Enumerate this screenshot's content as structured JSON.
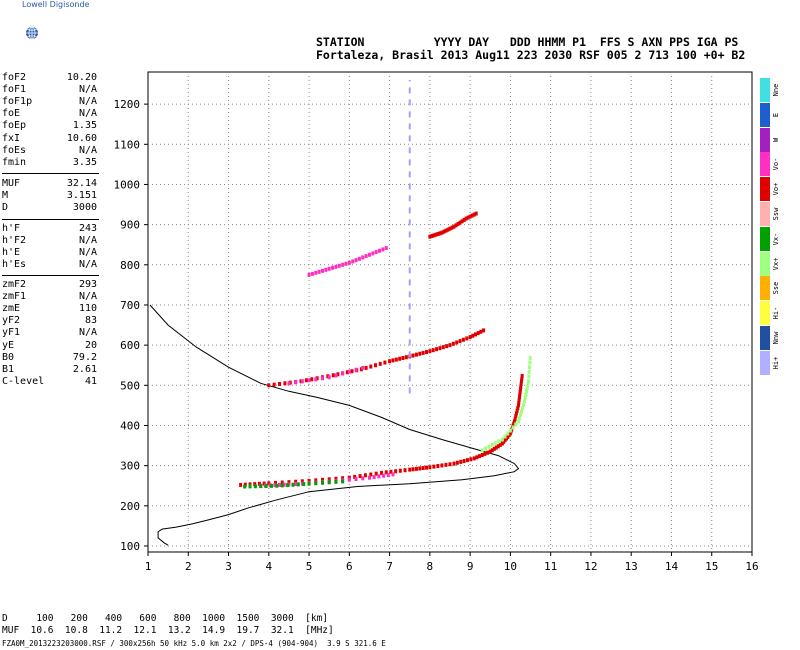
{
  "logo": {
    "text": "Lowell Digisonde",
    "icon": "globe-icon"
  },
  "header": {
    "line1": "STATION          YYYY DAY   DDD HHMM P1  FFS S AXN PPS IGA PS",
    "line2": "Fortaleza, Brasil 2013 Aug11 223 2030 RSF 005 2 713 100 +0+ B2"
  },
  "params": {
    "group1": [
      {
        "label": "foF2",
        "value": "10.20"
      },
      {
        "label": "foF1",
        "value": "N/A"
      },
      {
        "label": "foF1p",
        "value": "N/A"
      },
      {
        "label": "foE",
        "value": "N/A"
      },
      {
        "label": "foEp",
        "value": "1.35"
      },
      {
        "label": "fxI",
        "value": "10.60"
      },
      {
        "label": "foEs",
        "value": "N/A"
      },
      {
        "label": "fmin",
        "value": "3.35"
      }
    ],
    "group2": [
      {
        "label": "MUF",
        "value": "32.14"
      },
      {
        "label": "M",
        "value": "3.151"
      },
      {
        "label": "D",
        "value": "3000"
      }
    ],
    "group3": [
      {
        "label": "h'F",
        "value": "243"
      },
      {
        "label": "h'F2",
        "value": "N/A"
      },
      {
        "label": "h'E",
        "value": "N/A"
      },
      {
        "label": "h'Es",
        "value": "N/A"
      }
    ],
    "group4": [
      {
        "label": "zmF2",
        "value": "293"
      },
      {
        "label": "zmF1",
        "value": "N/A"
      },
      {
        "label": "zmE",
        "value": "110"
      },
      {
        "label": "yF2",
        "value": "83"
      },
      {
        "label": "yF1",
        "value": "N/A"
      },
      {
        "label": "yE",
        "value": "20"
      },
      {
        "label": "B0",
        "value": "79.2"
      },
      {
        "label": "B1",
        "value": "2.61"
      },
      {
        "label": "C-level",
        "value": "41"
      }
    ]
  },
  "legend": [
    {
      "label": "Nne",
      "color": "#40e0e0"
    },
    {
      "label": "E",
      "color": "#1e5fd0"
    },
    {
      "label": "W",
      "color": "#a020c0"
    },
    {
      "label": "Vo-",
      "color": "#ff30c0"
    },
    {
      "label": "Vo+",
      "color": "#e00000"
    },
    {
      "label": "Ssw",
      "color": "#ffb0b0"
    },
    {
      "label": "Vx-",
      "color": "#00a000"
    },
    {
      "label": "Vx+",
      "color": "#a0ff80"
    },
    {
      "label": "Sse",
      "color": "#ffb000"
    },
    {
      "label": "Hi-",
      "color": "#ffff40"
    },
    {
      "label": "Nnw",
      "color": "#2050a0"
    },
    {
      "label": "Hi+",
      "color": "#b0b0ff"
    }
  ],
  "muf_table": {
    "row1": "D     100   200   400   600   800  1000  1500  3000  [km]",
    "row2": "MUF  10.6  10.8  11.2  12.1  13.2  14.9  19.7  32.1  [MHz]"
  },
  "footer": "FZA0M_2013223203000.RSF / 300x256h 50 kHz 5.0 km 2x2 / DPS-4 (904-904)  3.9 S 321.6 E",
  "chart_data": {
    "type": "scatter",
    "title": "",
    "xlabel": "",
    "ylabel": "",
    "xlim": [
      1,
      16
    ],
    "ylim": [
      85,
      1280
    ],
    "x_ticks": [
      1,
      2,
      3,
      4,
      5,
      6,
      7,
      8,
      9,
      10,
      11,
      12,
      13,
      14,
      15,
      16
    ],
    "y_ticks": [
      100,
      200,
      300,
      400,
      500,
      600,
      700,
      800,
      900,
      1000,
      1100,
      1200
    ],
    "grid": true,
    "series": [
      {
        "style": "line",
        "color": "#000000",
        "points": [
          [
            1.05,
            700
          ],
          [
            1.5,
            650
          ],
          [
            2.2,
            595
          ],
          [
            3,
            545
          ],
          [
            3.8,
            505
          ],
          [
            4.5,
            485
          ],
          [
            5.2,
            470
          ],
          [
            6,
            450
          ],
          [
            6.8,
            420
          ],
          [
            7.5,
            390
          ],
          [
            8.3,
            365
          ],
          [
            9,
            345
          ],
          [
            9.7,
            325
          ],
          [
            10.1,
            305
          ],
          [
            10.2,
            293
          ],
          [
            10.1,
            285
          ],
          [
            9.6,
            275
          ],
          [
            8.8,
            265
          ],
          [
            7.5,
            255
          ],
          [
            6.2,
            248
          ],
          [
            5,
            235
          ],
          [
            4.2,
            215
          ],
          [
            3.5,
            195
          ],
          [
            3,
            178
          ],
          [
            2.5,
            165
          ],
          [
            2.1,
            155
          ],
          [
            1.7,
            147
          ],
          [
            1.35,
            142
          ],
          [
            1.25,
            135
          ],
          [
            1.25,
            120
          ],
          [
            1.4,
            108
          ],
          [
            1.5,
            102
          ]
        ]
      },
      {
        "style": "trace",
        "color": "#e00000",
        "points": [
          [
            3.3,
            252
          ],
          [
            4,
            256
          ],
          [
            5,
            262
          ],
          [
            6,
            270
          ],
          [
            6.8,
            282
          ],
          [
            7.5,
            290
          ],
          [
            8,
            296
          ],
          [
            8.6,
            305
          ],
          [
            9.1,
            318
          ],
          [
            9.5,
            335
          ],
          [
            9.8,
            355
          ],
          [
            10,
            380
          ],
          [
            10.1,
            410
          ],
          [
            10.2,
            450
          ],
          [
            10.25,
            490
          ],
          [
            10.3,
            530
          ]
        ]
      },
      {
        "style": "trace",
        "color": "#ff30c0",
        "points": [
          [
            3.8,
            250
          ],
          [
            4.5,
            253
          ],
          [
            5.5,
            260
          ],
          [
            6.5,
            270
          ],
          [
            7.2,
            280
          ]
        ]
      },
      {
        "style": "trace",
        "color": "#00a000",
        "points": [
          [
            3.4,
            248
          ],
          [
            4.2,
            250
          ],
          [
            5,
            255
          ],
          [
            6,
            262
          ]
        ]
      },
      {
        "style": "trace",
        "color": "#a0ff80",
        "points": [
          [
            9.3,
            338
          ],
          [
            9.8,
            365
          ],
          [
            10.2,
            410
          ],
          [
            10.35,
            460
          ],
          [
            10.45,
            510
          ],
          [
            10.5,
            580
          ]
        ]
      },
      {
        "style": "trace",
        "color": "#e00000",
        "points": [
          [
            4,
            500
          ],
          [
            4.8,
            510
          ],
          [
            5.6,
            525
          ],
          [
            6.3,
            540
          ],
          [
            7,
            560
          ],
          [
            7.5,
            572
          ],
          [
            8,
            585
          ],
          [
            8.5,
            600
          ],
          [
            9,
            620
          ],
          [
            9.4,
            640
          ]
        ]
      },
      {
        "style": "trace",
        "color": "#ff30c0",
        "points": [
          [
            4.5,
            505
          ],
          [
            5.5,
            520
          ],
          [
            6.5,
            548
          ]
        ]
      },
      {
        "style": "trace",
        "color": "#ff30c0",
        "points": [
          [
            5,
            775
          ],
          [
            5.5,
            790
          ],
          [
            6,
            805
          ],
          [
            6.5,
            825
          ],
          [
            7,
            845
          ]
        ]
      },
      {
        "style": "trace",
        "color": "#e00000",
        "points": [
          [
            8,
            870
          ],
          [
            8.3,
            880
          ],
          [
            8.6,
            895
          ],
          [
            8.9,
            915
          ],
          [
            9.2,
            930
          ]
        ]
      },
      {
        "style": "dash",
        "color": "#a0a0ff",
        "points": [
          [
            7.5,
            480
          ],
          [
            7.5,
            1260
          ]
        ]
      }
    ]
  }
}
